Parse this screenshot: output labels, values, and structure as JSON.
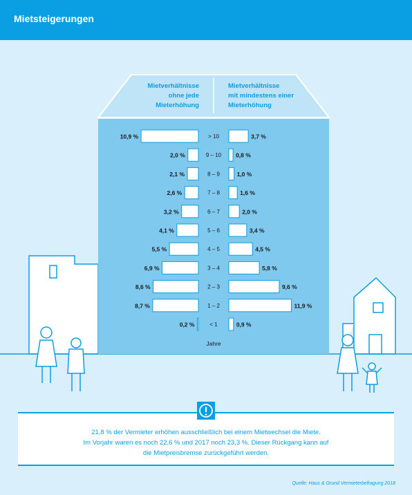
{
  "header": {
    "title": "Mietsteigerungen"
  },
  "colors": {
    "accent": "#0a9ee2",
    "background": "#d9effb",
    "house_fill": "#7fc8ee",
    "roof_fill": "#bfe3f7"
  },
  "chart_data": {
    "type": "bar",
    "orientation": "horizontal-butterfly",
    "categories": [
      "> 10",
      "9 – 10",
      "8 – 9",
      "7 – 8",
      "6 – 7",
      "5 – 6",
      "4 – 5",
      "3 – 4",
      "2 – 3",
      "1 – 2",
      "< 1"
    ],
    "xlabel": "Jahre",
    "series": [
      {
        "name": "Mietverhältnisse ohne jede Mieterhöhung",
        "name_lines": [
          "Mietverhältnisse",
          "ohne jede",
          "Mieterhöhung"
        ],
        "values": [
          10.9,
          2.0,
          2.1,
          2.6,
          3.2,
          4.1,
          5.5,
          6.9,
          8.6,
          8.7,
          0.2
        ],
        "labels": [
          "10,9 %",
          "2,0 %",
          "2,1 %",
          "2,6 %",
          "3,2 %",
          "4,1 %",
          "5,5 %",
          "6,9 %",
          "8,6 %",
          "8,7 %",
          "0,2 %"
        ]
      },
      {
        "name": "Mietverhältnisse mit mindestens einer Mieterhöhung",
        "name_lines": [
          "Mietverhältnisse",
          "mit mindestens einer",
          "Mieterhöhung"
        ],
        "values": [
          3.7,
          0.8,
          1.0,
          1.6,
          2.0,
          3.4,
          4.5,
          5.8,
          9.6,
          11.9,
          0.9
        ],
        "labels": [
          "3,7 %",
          "0,8 %",
          "1,0 %",
          "1,6 %",
          "2,0 %",
          "3,4 %",
          "4,5 %",
          "5,8 %",
          "9,6 %",
          "11,9 %",
          "0,9 %"
        ]
      }
    ]
  },
  "note": {
    "icon": "exclamation-icon",
    "lines": [
      "21,8 % der Vermieter erhöhen ausschließlich bei einem Mietwechsel die Miete.",
      "Im Vorjahr waren es noch 22,6 % und 2017 noch 23,3 %. Dieser Rückgang kann auf",
      "die Mietpreisbremse zurückgeführt werden."
    ]
  },
  "source": "Quelle: Haus & Grund Vermieterbefragung 2018"
}
